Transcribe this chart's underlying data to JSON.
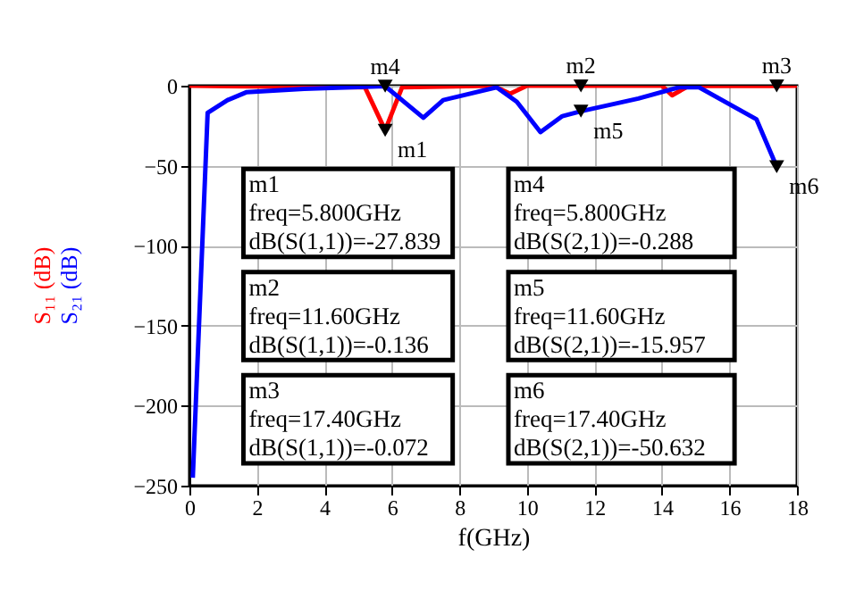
{
  "chart_data": {
    "type": "line",
    "xlabel": "f(GHz)",
    "x": [
      0,
      5.2,
      5.8,
      6.3,
      9.0,
      9.5,
      10.0,
      14.0,
      14.3,
      14.8,
      17.4,
      18
    ],
    "series": [
      {
        "name": "S₁₁ (dB)",
        "color": "#ff0000",
        "values": [
          0,
          -1,
          -27.839,
          -1,
          0,
          -5,
          0,
          0,
          -6,
          0,
          -0.072,
          0
        ]
      },
      {
        "name": "S₂₁ (dB)",
        "color": "#0000ff",
        "x": [
          0.1,
          0.54,
          1.13,
          1.7,
          3.4,
          5.8,
          6.93,
          7.52,
          9.1,
          9.7,
          10.4,
          11.05,
          11.6,
          13.3,
          14.5,
          15.1,
          16.8,
          17.4
        ],
        "values": [
          -245,
          -17,
          -9,
          -4,
          -2,
          -0.288,
          -20,
          -9,
          -1,
          -10,
          -29,
          -19,
          -15.957,
          -8,
          -1,
          -1,
          -21,
          -50.632
        ]
      }
    ],
    "xlim": [
      0,
      18
    ],
    "xticks": [
      0,
      2,
      4,
      6,
      8,
      10,
      12,
      14,
      16,
      18
    ],
    "ylim": [
      -250,
      0
    ],
    "yticks": [
      -250,
      -200,
      -150,
      -100,
      -50,
      0
    ],
    "grid": true,
    "legend": false,
    "annotations": [
      {
        "text": "m1",
        "x": 5.8,
        "y": -27.839
      },
      {
        "text": "m2",
        "x": 11.6,
        "y": -0.136
      },
      {
        "text": "m3",
        "x": 17.4,
        "y": -0.072
      },
      {
        "text": "m4",
        "x": 5.8,
        "y": -0.288
      },
      {
        "text": "m5",
        "x": 11.6,
        "y": -15.957
      },
      {
        "text": "m6",
        "x": 17.4,
        "y": -50.632
      },
      "m1\nfreq=5.800GHz\ndB(S(1,1))=-27.839",
      "m2\nfreq=11.60GHz\ndB(S(1,1))=-0.136",
      "m3\nfreq=17.40GHz\ndB(S(1,1))=-0.072",
      "m4\nfreq=5.800GHz\ndB(S(2,1))=-0.288",
      "m5\nfreq=11.60GHz\ndB(S(2,1))=-15.957",
      "m6\nfreq=17.40GHz\ndB(S(2,1))=-50.632"
    ]
  }
}
